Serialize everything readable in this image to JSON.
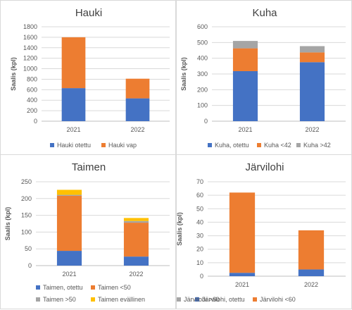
{
  "chart_data": [
    {
      "type": "bar",
      "stacked": true,
      "title": "Hauki",
      "ylabel": "Saalis (kpl)",
      "categories": [
        "2021",
        "2022"
      ],
      "ylim": [
        0,
        1800
      ],
      "yticks": [
        "0",
        "200",
        "400",
        "600",
        "800",
        "1000",
        "1200",
        "1400",
        "1600",
        "1800"
      ],
      "series": [
        {
          "name": "Hauki otettu",
          "color": "#4472c4",
          "values": [
            630,
            435
          ]
        },
        {
          "name": "Hauki vap",
          "color": "#ed7d31",
          "values": [
            970,
            375
          ]
        }
      ],
      "grid": true,
      "legend": "bottom"
    },
    {
      "type": "bar",
      "stacked": true,
      "title": "Kuha",
      "ylabel": "Saalis (kpl)",
      "categories": [
        "2021",
        "2022"
      ],
      "ylim": [
        0,
        600
      ],
      "yticks": [
        "0",
        "100",
        "200",
        "300",
        "400",
        "500",
        "600"
      ],
      "series": [
        {
          "name": "Kuha, otettu",
          "color": "#4472c4",
          "values": [
            318,
            375
          ]
        },
        {
          "name": "Kuha <42",
          "color": "#ed7d31",
          "values": [
            145,
            62
          ]
        },
        {
          "name": "Kuha >42",
          "color": "#a5a5a5",
          "values": [
            47,
            40
          ]
        }
      ],
      "grid": true,
      "legend": "bottom"
    },
    {
      "type": "bar",
      "stacked": true,
      "title": "Taimen",
      "ylabel": "Saalis (kpl)",
      "categories": [
        "2021",
        "2022"
      ],
      "ylim": [
        0,
        250
      ],
      "yticks": [
        "0",
        "50",
        "100",
        "150",
        "200",
        "250"
      ],
      "series": [
        {
          "name": "Taimen, otettu",
          "color": "#4472c4",
          "values": [
            44,
            27
          ]
        },
        {
          "name": "Taimen <50",
          "color": "#ed7d31",
          "values": [
            164,
            101
          ]
        },
        {
          "name": "Taimen >50",
          "color": "#a5a5a5",
          "values": [
            3,
            5
          ]
        },
        {
          "name": "Taimen evällinen",
          "color": "#ffc000",
          "values": [
            15,
            9
          ]
        }
      ],
      "grid": true,
      "legend": "bottom"
    },
    {
      "type": "bar",
      "stacked": true,
      "title": "Järvilohi",
      "ylabel": "Saalis (kpl)",
      "categories": [
        "2021",
        "2022"
      ],
      "ylim": [
        0,
        70
      ],
      "yticks": [
        "0",
        "10",
        "20",
        "30",
        "40",
        "50",
        "60",
        "70"
      ],
      "series": [
        {
          "name": "Järvilohi, otettu",
          "color": "#4472c4",
          "values": [
            2.5,
            5
          ]
        },
        {
          "name": "Järvilohi <60",
          "color": "#ed7d31",
          "values": [
            59.5,
            29
          ]
        },
        {
          "name": "Järvilohi >60",
          "color": "#a5a5a5",
          "values": [
            0,
            0
          ]
        }
      ],
      "grid": true,
      "legend": "bottom"
    }
  ]
}
